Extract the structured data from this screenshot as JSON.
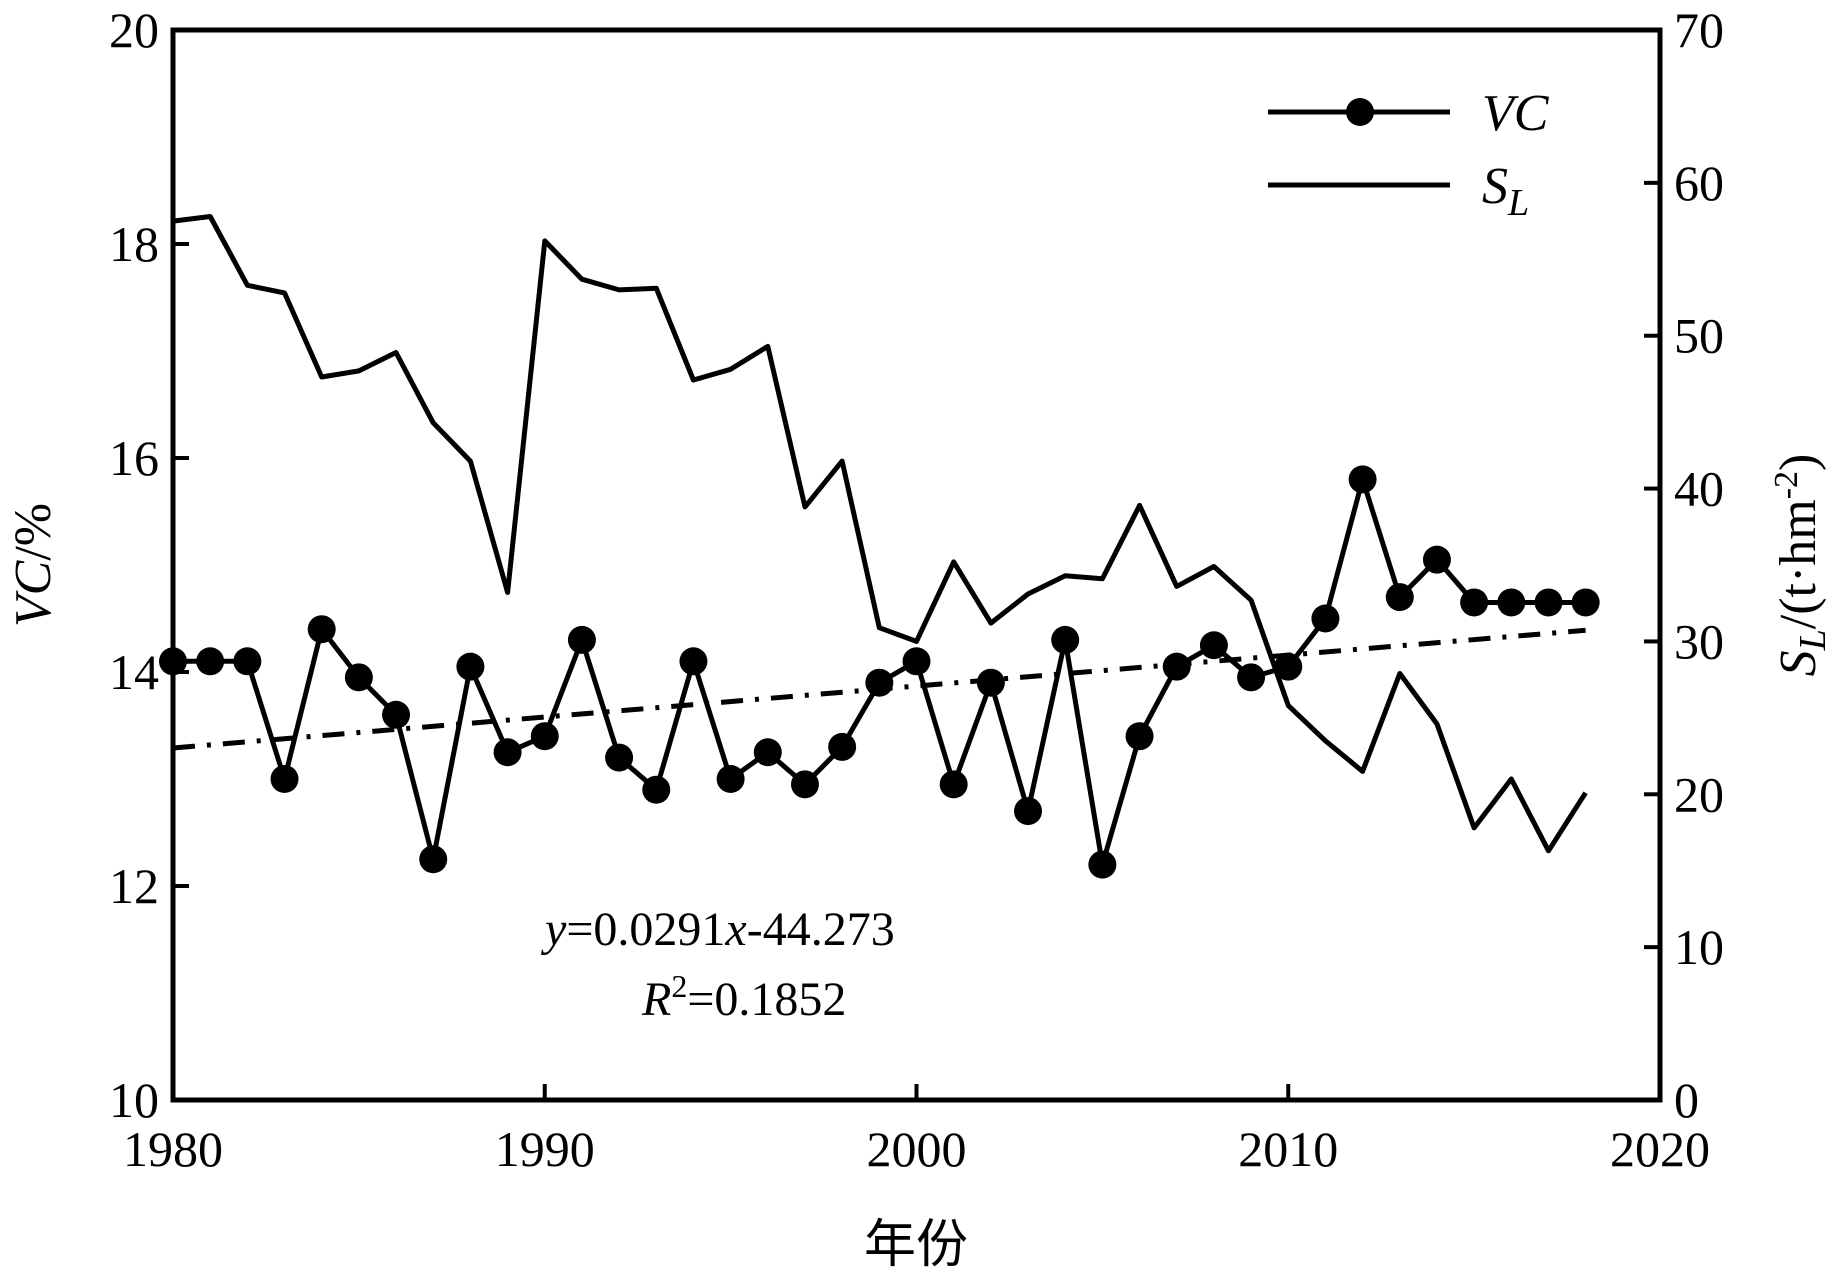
{
  "chart_data": {
    "type": "line",
    "title": "",
    "xlabel": "年份",
    "ylabel_left": "VC/%",
    "ylabel_right": "S_L/(t·hm⁻²)",
    "xlim": [
      1980,
      2020
    ],
    "ylim_left": [
      10,
      20
    ],
    "ylim_right": [
      0,
      70
    ],
    "x_ticks": [
      1980,
      1990,
      2000,
      2010,
      2020
    ],
    "y_left_ticks": [
      10,
      12,
      14,
      16,
      18,
      20
    ],
    "y_right_ticks": [
      0,
      10,
      20,
      30,
      40,
      50,
      60,
      70
    ],
    "grid": false,
    "legend_position": "top-right",
    "series": [
      {
        "name": "VC",
        "axis": "left",
        "marker": "circle",
        "x": [
          1980,
          1981,
          1982,
          1983,
          1984,
          1985,
          1986,
          1987,
          1988,
          1989,
          1990,
          1991,
          1992,
          1993,
          1994,
          1995,
          1996,
          1997,
          1998,
          1999,
          2000,
          2001,
          2002,
          2003,
          2004,
          2005,
          2006,
          2007,
          2008,
          2009,
          2010,
          2011,
          2012,
          2013,
          2014,
          2015,
          2016,
          2017,
          2018
        ],
        "values": [
          14.1,
          14.1,
          14.1,
          13.0,
          14.4,
          13.95,
          13.6,
          12.25,
          14.05,
          13.25,
          13.4,
          14.3,
          13.2,
          12.9,
          14.1,
          13.0,
          13.25,
          12.95,
          13.3,
          13.9,
          14.1,
          12.95,
          13.9,
          12.7,
          14.3,
          12.2,
          13.4,
          14.05,
          14.25,
          13.95,
          14.05,
          14.5,
          15.8,
          14.7,
          15.05,
          14.65,
          14.65,
          14.65,
          14.65
        ]
      },
      {
        "name": "S_L",
        "axis": "right",
        "marker": "none",
        "x": [
          1980,
          1981,
          1982,
          1983,
          1984,
          1985,
          1986,
          1987,
          1988,
          1989,
          1990,
          1991,
          1992,
          1993,
          1994,
          1995,
          1996,
          1997,
          1998,
          1999,
          2000,
          2001,
          2002,
          2003,
          2004,
          2005,
          2006,
          2007,
          2008,
          2009,
          2010,
          2011,
          2012,
          2013,
          2014,
          2015,
          2016,
          2017,
          2018
        ],
        "values": [
          57.5,
          57.8,
          53.3,
          52.8,
          47.3,
          47.7,
          48.9,
          44.3,
          41.8,
          33.2,
          56.2,
          53.7,
          53.0,
          53.1,
          47.1,
          47.8,
          49.3,
          38.8,
          41.8,
          30.9,
          30.0,
          35.2,
          31.2,
          33.1,
          34.3,
          34.1,
          38.9,
          33.6,
          34.9,
          32.7,
          25.8,
          23.5,
          21.5,
          27.9,
          24.6,
          17.8,
          21.0,
          16.3,
          20.1
        ]
      },
      {
        "name": "",
        "axis": "left",
        "marker": "none",
        "style": "dash-dot",
        "x": [
          1980,
          2018
        ],
        "values": [
          13.29,
          14.39
        ]
      }
    ],
    "legend": [
      {
        "label_main": "VC",
        "label_sub": "",
        "marker": "circle"
      },
      {
        "label_main": "S",
        "label_sub": "L",
        "marker": "none"
      }
    ],
    "annotations": [
      {
        "text_italic": "y",
        "text": "=0.0291",
        "text_italic2": "x",
        "text2": "-44.273"
      },
      {
        "text_italic": "R",
        "sup": "2",
        "text": "=0.1852"
      }
    ],
    "axis_titles": {
      "left": {
        "italic": "VC",
        "plain": "/%"
      },
      "right": {
        "italic": "S",
        "sub": "L",
        "plain": "/(t·hm",
        "sup": "-2",
        "close": ")"
      },
      "bottom": "年份"
    }
  }
}
